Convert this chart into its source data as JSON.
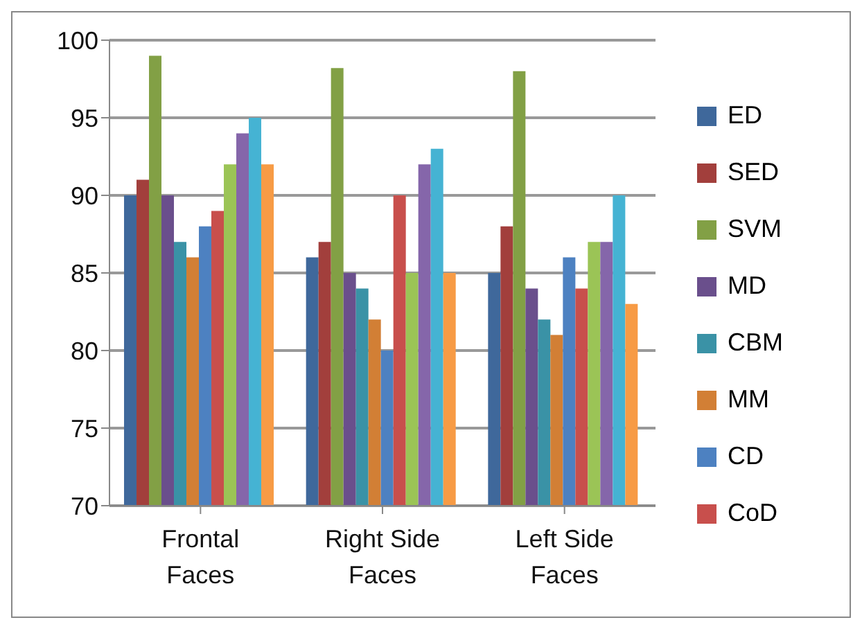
{
  "chart_data": {
    "type": "bar",
    "categories": [
      "Frontal Faces",
      "Right Side Faces",
      "Left Side Faces"
    ],
    "series": [
      {
        "name": "ED",
        "color": "#3f689b",
        "values": [
          90,
          86,
          85
        ]
      },
      {
        "name": "SED",
        "color": "#a23f3c",
        "values": [
          91,
          87,
          88
        ]
      },
      {
        "name": "SVM",
        "color": "#82a045",
        "values": [
          99,
          98.2,
          98
        ]
      },
      {
        "name": "MD",
        "color": "#6a4f8c",
        "values": [
          90,
          85,
          84
        ]
      },
      {
        "name": "CBM",
        "color": "#3a92a6",
        "values": [
          87,
          84,
          82
        ]
      },
      {
        "name": "MM",
        "color": "#d27f35",
        "values": [
          86,
          82,
          81
        ]
      },
      {
        "name": "CD",
        "color": "#4d81c1",
        "values": [
          88,
          80,
          86
        ]
      },
      {
        "name": "CoD",
        "color": "#c84f4c",
        "values": [
          89,
          90,
          84
        ]
      },
      {
        "color": "#9bc456",
        "values": [
          92,
          85,
          87
        ]
      },
      {
        "color": "#8566aa",
        "values": [
          94,
          92,
          87
        ]
      },
      {
        "color": "#45b3d3",
        "values": [
          95,
          93,
          90
        ]
      },
      {
        "color": "#f79b45",
        "values": [
          92,
          85,
          83
        ]
      }
    ],
    "ylim": [
      70,
      100
    ],
    "yticks": [
      70,
      75,
      80,
      85,
      90,
      95,
      100
    ],
    "grid": "y",
    "legend": "right"
  }
}
